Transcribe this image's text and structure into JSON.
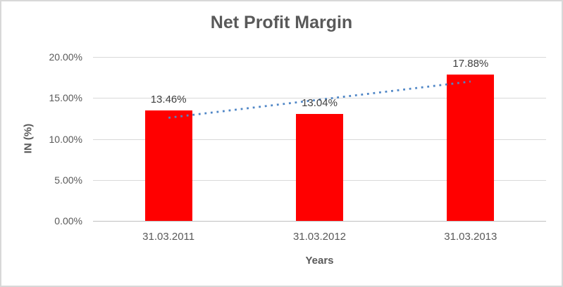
{
  "chart_data": {
    "type": "bar",
    "title": "Net Profit Margin",
    "categories": [
      "31.03.2011",
      "31.03.2012",
      "31.03.2013"
    ],
    "values": [
      13.46,
      13.04,
      17.88
    ],
    "data_labels": [
      "13.46%",
      "13.04%",
      "17.88%"
    ],
    "xlabel": "Years",
    "ylabel": "IN (%)",
    "ylim": [
      0,
      20
    ],
    "y_tick_step": 5,
    "y_ticks": [
      "20.00%",
      "15.00%",
      "10.00%",
      "5.00%",
      "0.00%"
    ],
    "grid": true,
    "legend": "none",
    "bar_color": "#FF0000",
    "trendline": {
      "type": "linear",
      "style": "dotted",
      "color": "#4F86C6"
    },
    "colors": {
      "gridline": "#D9D9D9",
      "axis_line": "#BFBFBF",
      "tick_text": "#595959",
      "title_text": "#595959",
      "data_label_text": "#404040"
    }
  }
}
